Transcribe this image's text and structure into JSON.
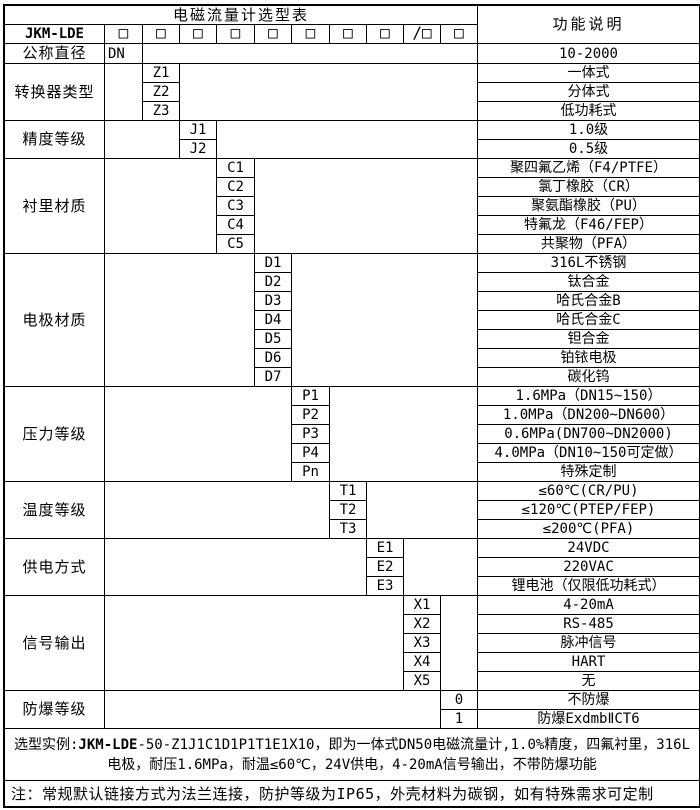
{
  "title": "电磁流量计选型表",
  "right_header": "功能说明",
  "model": {
    "prefix": "JKM-LDE",
    "boxes": [
      "□",
      "□",
      "□",
      "□",
      "□",
      "□",
      "□",
      "□",
      "/□",
      "□"
    ]
  },
  "sections": [
    {
      "label": "公称直径",
      "rows": [
        {
          "code": "DN",
          "desc": "10-2000"
        }
      ]
    },
    {
      "label": "转换器类型",
      "rows": [
        {
          "code": "Z1",
          "desc": "一体式"
        },
        {
          "code": "Z2",
          "desc": "分体式"
        },
        {
          "code": "Z3",
          "desc": "低功耗式"
        }
      ]
    },
    {
      "label": "精度等级",
      "rows": [
        {
          "code": "J1",
          "desc": "1.0级"
        },
        {
          "code": "J2",
          "desc": "0.5级"
        }
      ]
    },
    {
      "label": "衬里材质",
      "rows": [
        {
          "code": "C1",
          "desc": "聚四氟乙烯（F4/PTFE）"
        },
        {
          "code": "C2",
          "desc": "氯丁橡胶（CR）"
        },
        {
          "code": "C3",
          "desc": "聚氨酯橡胶（PU）"
        },
        {
          "code": "C4",
          "desc": "特氟龙（F46/FEP）"
        },
        {
          "code": "C5",
          "desc": "共聚物（PFA）"
        }
      ]
    },
    {
      "label": "电极材质",
      "rows": [
        {
          "code": "D1",
          "desc": "316L不锈钢"
        },
        {
          "code": "D2",
          "desc": "钛合金"
        },
        {
          "code": "D3",
          "desc": "哈氏合金B"
        },
        {
          "code": "D4",
          "desc": "哈氏合金C"
        },
        {
          "code": "D5",
          "desc": "钽合金"
        },
        {
          "code": "D6",
          "desc": "铂铱电极"
        },
        {
          "code": "D7",
          "desc": "碳化钨"
        }
      ]
    },
    {
      "label": "压力等级",
      "rows": [
        {
          "code": "P1",
          "desc": "1.6MPa（DN15~150）"
        },
        {
          "code": "P2",
          "desc": "1.0MPa（DN200~DN600）"
        },
        {
          "code": "P3",
          "desc": "0.6MPa(DN700~DN2000)"
        },
        {
          "code": "P4",
          "desc": "4.0MPa（DN10~150可定做）"
        },
        {
          "code": "Pn",
          "desc": "特殊定制"
        }
      ]
    },
    {
      "label": "温度等级",
      "rows": [
        {
          "code": "T1",
          "desc": "≤60℃(CR/PU)"
        },
        {
          "code": "T2",
          "desc": "≤120℃(PTEP/FEP)"
        },
        {
          "code": "T3",
          "desc": "≤200℃(PFA)"
        }
      ]
    },
    {
      "label": "供电方式",
      "rows": [
        {
          "code": "E1",
          "desc": "24VDC"
        },
        {
          "code": "E2",
          "desc": "220VAC"
        },
        {
          "code": "E3",
          "desc": "锂电池（仅限低功耗式）"
        }
      ]
    },
    {
      "label": "信号输出",
      "rows": [
        {
          "code": "X1",
          "desc": "4-20mA"
        },
        {
          "code": "X2",
          "desc": "RS-485"
        },
        {
          "code": "X3",
          "desc": "脉冲信号"
        },
        {
          "code": "X4",
          "desc": "HART"
        },
        {
          "code": "X5",
          "desc": "无"
        }
      ]
    },
    {
      "label": "防爆等级",
      "rows": [
        {
          "code": "0",
          "desc": "不防爆"
        },
        {
          "code": "1",
          "desc": "防爆ExdmbⅡCT6"
        }
      ]
    }
  ],
  "footer": {
    "example_prefix": "选型实例:",
    "example_model": "JKM-LDE",
    "example_rest": "-50-Z1J1C1D1P1T1E1X10，即为一体式DN50电磁流量计,1.0%精度，四氟衬里，316L电极，耐压1.6MPa，耐温≤60℃，24V供电，4-20mA信号输出，不带防爆功能",
    "note": "注：常规默认链接方式为法兰连接，防护等级为IP65，外壳材料为碳钢，如有特殊需求可定制"
  },
  "colors": {
    "border": "#000000",
    "background": "#ffffff",
    "text": "#000000"
  }
}
